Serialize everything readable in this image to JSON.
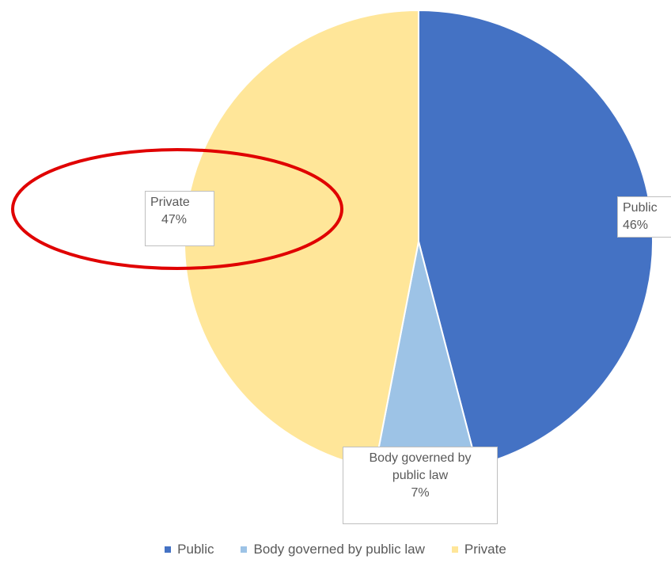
{
  "chart_data": {
    "type": "pie",
    "title": "",
    "series": [
      {
        "name": "Public",
        "value": 46,
        "label": "46%",
        "color": "#4472C4"
      },
      {
        "name": "Body governed by public law",
        "value": 7,
        "label": "7%",
        "color": "#9DC3E6"
      },
      {
        "name": "Private",
        "value": 47,
        "label": "47%",
        "color": "#FFE699"
      }
    ],
    "data_labels": [
      {
        "lines": [
          "Public",
          "46%"
        ]
      },
      {
        "lines": [
          "Body governed by",
          "public law",
          "7%"
        ]
      },
      {
        "lines": [
          "Private",
          "47%"
        ]
      }
    ],
    "legend_position": "bottom",
    "annotation": {
      "shape": "ellipse",
      "color": "#E00000",
      "target": "Private"
    }
  }
}
